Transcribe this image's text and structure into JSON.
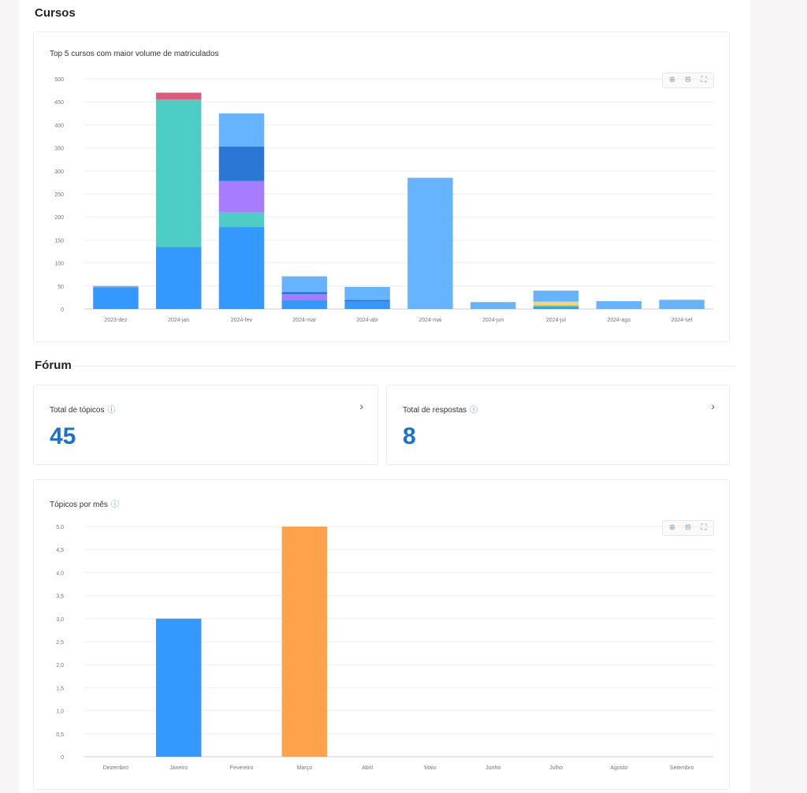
{
  "cursos": {
    "section_title": "Cursos",
    "chart_title": "Top 5 cursos com maior volume de matriculados"
  },
  "forum": {
    "section_title": "Fórum",
    "total_topicos": {
      "label": "Total de tópicos",
      "value": "45"
    },
    "total_respostas": {
      "label": "Total de respostas",
      "value": "8"
    },
    "chart_title": "Tópicos por mês"
  },
  "toolbar": {
    "zoom_in_icon": "zoom-in-icon",
    "zoom_reset_icon": "zoom-reset-icon",
    "fullscreen_icon": "fullscreen-icon"
  },
  "chart_data": [
    {
      "type": "bar",
      "stacked": true,
      "categories": [
        "2023-dez",
        "2024-jan",
        "2024-fev",
        "2024-mar",
        "2024-abr",
        "2024-mai",
        "2024-jun",
        "2024-jul",
        "2024-ago",
        "2024-set"
      ],
      "yticks": [
        "0",
        "50",
        "100",
        "150",
        "200",
        "250",
        "300",
        "350",
        "400",
        "450",
        "500"
      ],
      "ylim": [
        0,
        500
      ],
      "grid": true,
      "colors": [
        "#3399ff",
        "#4ecdc4",
        "#a87cff",
        "#2a77d6",
        "#e05a7c",
        "#ffd36b",
        "#66b3ff"
      ],
      "stacks": [
        [
          47,
          0,
          0,
          0,
          0,
          0,
          3
        ],
        [
          135,
          320,
          0,
          0,
          15,
          0,
          0
        ],
        [
          178,
          32,
          68,
          75,
          0,
          0,
          72
        ],
        [
          20,
          0,
          12,
          5,
          0,
          0,
          34
        ],
        [
          16,
          0,
          0,
          4,
          0,
          0,
          28
        ],
        [
          0,
          0,
          0,
          0,
          0,
          0,
          285
        ],
        [
          0,
          0,
          0,
          0,
          0,
          0,
          15
        ],
        [
          5,
          3,
          0,
          0,
          0,
          8,
          24
        ],
        [
          0,
          0,
          0,
          0,
          0,
          0,
          17
        ],
        [
          0,
          0,
          0,
          0,
          0,
          0,
          20
        ]
      ]
    },
    {
      "type": "bar",
      "categories": [
        "Dezembro",
        "Janeiro",
        "Fevereiro",
        "Março",
        "Abril",
        "Maio",
        "Junho",
        "Julho",
        "Agosto",
        "Setembro"
      ],
      "values": [
        0,
        3,
        0,
        5,
        0,
        0,
        0,
        0,
        0,
        0
      ],
      "colors": [
        "#3399ff",
        "#3399ff",
        "#3399ff",
        "#ffa24c",
        "#3399ff",
        "#3399ff",
        "#3399ff",
        "#3399ff",
        "#3399ff",
        "#3399ff"
      ],
      "yticks": [
        "0",
        "0,5",
        "1,0",
        "1,5",
        "2,0",
        "2,5",
        "3,0",
        "3,5",
        "4,0",
        "4,5",
        "5,0"
      ],
      "ylim": [
        0,
        5
      ],
      "grid": true
    }
  ]
}
